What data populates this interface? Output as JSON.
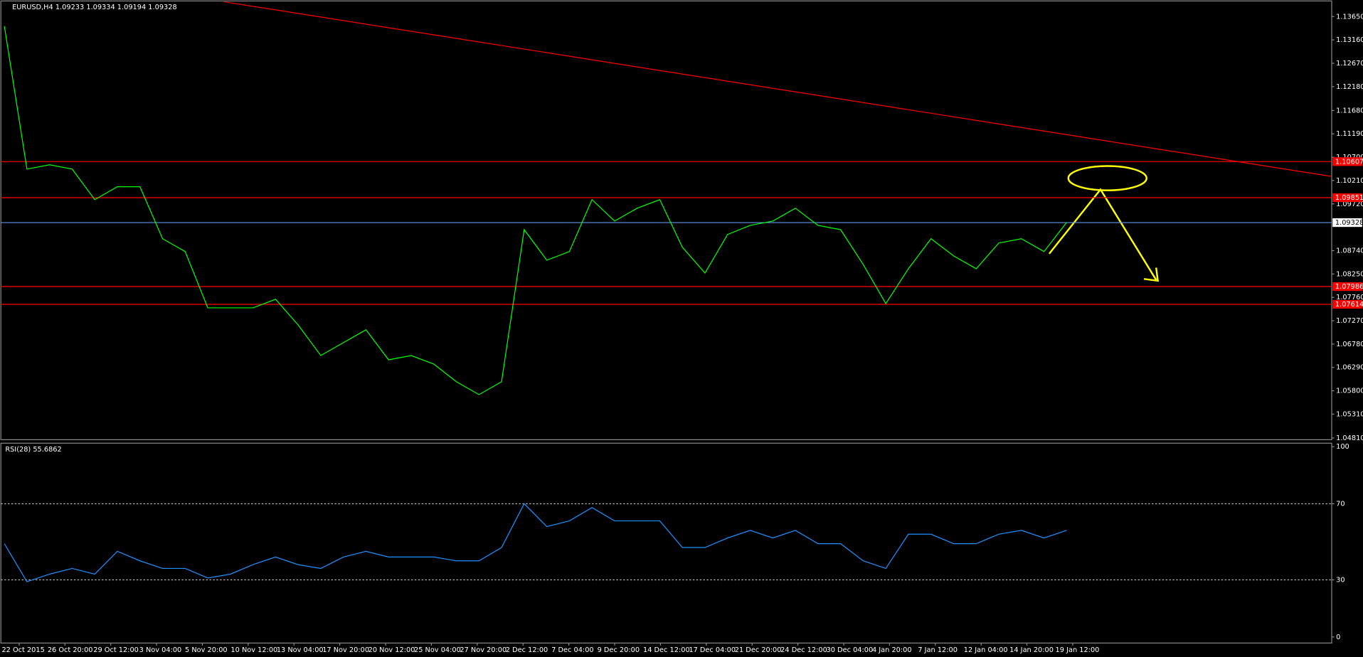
{
  "chart_data": [
    {
      "type": "line",
      "title": "EURUSD,H4 1.09233 1.09334 1.09194 1.09328",
      "x_labels": [
        "22 Oct 2015",
        "26 Oct 20:00",
        "29 Oct 12:00",
        "3 Nov 04:00",
        "5 Nov 20:00",
        "10 Nov 12:00",
        "13 Nov 04:00",
        "17 Nov 20:00",
        "20 Nov 12:00",
        "25 Nov 04:00",
        "27 Nov 20:00",
        "2 Dec 12:00",
        "7 Dec 04:00",
        "9 Dec 20:00",
        "14 Dec 12:00",
        "17 Dec 04:00",
        "21 Dec 20:00",
        "24 Dec 12:00",
        "30 Dec 04:00",
        "4 Jan 20:00",
        "7 Jan 12:00",
        "12 Jan 04:00",
        "14 Jan 20:00",
        "19 Jan 12:00"
      ],
      "series": [
        {
          "color": "#00ff00",
          "values": [
            1.1345,
            1.1045,
            1.1054,
            1.1045,
            1.0981,
            1.1008,
            1.1008,
            1.0899,
            1.0872,
            1.0754,
            1.0754,
            1.0754,
            1.0772,
            1.0718,
            1.0654,
            1.0681,
            1.0708,
            1.0645,
            1.0654,
            1.0636,
            1.0599,
            1.0572,
            1.0599,
            1.0918,
            1.0854,
            1.0872,
            1.0981,
            1.0936,
            1.0963,
            1.0981,
            1.0881,
            1.0827,
            1.0908,
            1.0927,
            1.0936,
            1.0963,
            1.0927,
            1.0918,
            1.0845,
            1.0763,
            1.0836,
            1.0899,
            1.0863,
            1.0836,
            1.089,
            1.0899,
            1.0872,
            1.0933
          ]
        }
      ],
      "ylim": [
        1.04774,
        1.13959
      ],
      "yticks": [
        {
          "value": 1.1365,
          "label": "1.13650"
        },
        {
          "value": 1.1316,
          "label": "1.13160"
        },
        {
          "value": 1.1267,
          "label": "1.12670"
        },
        {
          "value": 1.1218,
          "label": "1.12180"
        },
        {
          "value": 1.1168,
          "label": "1.11680"
        },
        {
          "value": 1.1119,
          "label": "1.11190"
        },
        {
          "value": 1.107,
          "label": "1.10700"
        },
        {
          "value": 1.1021,
          "label": "1.10210"
        },
        {
          "value": 1.0972,
          "label": "1.09720"
        },
        {
          "value": 1.0874,
          "label": "1.08740"
        },
        {
          "value": 1.0825,
          "label": "1.08250"
        },
        {
          "value": 1.0776,
          "label": "1.07760"
        },
        {
          "value": 1.0727,
          "label": "1.07270"
        },
        {
          "value": 1.0678,
          "label": "1.06780"
        },
        {
          "value": 1.0629,
          "label": "1.06290"
        },
        {
          "value": 1.058,
          "label": "1.05800"
        },
        {
          "value": 1.0531,
          "label": "1.05310"
        },
        {
          "value": 1.0481,
          "label": "1.04810"
        }
      ],
      "levels": [
        1.10607,
        1.09851,
        1.07986,
        1.07614
      ],
      "level_color": "#ff0000",
      "current_price": 1.09328,
      "current_color": "#6495ed"
    },
    {
      "type": "line",
      "title": "RSI(28) 55.6862",
      "series": [
        {
          "color": "#1e90ff",
          "values": [
            49,
            29,
            33,
            36,
            33,
            45,
            40,
            36,
            36,
            31,
            33,
            38,
            42,
            38,
            36,
            42,
            45,
            42,
            42,
            42,
            40,
            40,
            47,
            70,
            58,
            61,
            68,
            61,
            61,
            61,
            47,
            47,
            52,
            56,
            52,
            56,
            49,
            49,
            40,
            36,
            54,
            54,
            49,
            49,
            54,
            56,
            52,
            56
          ]
        }
      ],
      "ylim": [
        0,
        100
      ],
      "yticks": [
        100,
        70,
        30,
        0
      ],
      "levels": [
        70,
        30
      ]
    }
  ]
}
